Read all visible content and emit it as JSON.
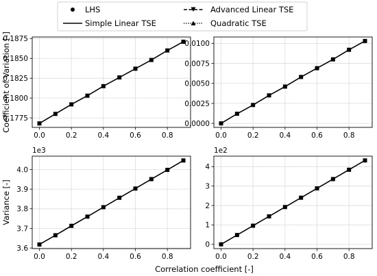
{
  "legend": {
    "entries": [
      {
        "label": "LHS",
        "marker": "circle",
        "line": "none"
      },
      {
        "label": "Advanced Linear TSE",
        "marker": "triangle-down",
        "line": "dashed"
      },
      {
        "label": "Simple Linear TSE",
        "marker": "none",
        "line": "solid"
      },
      {
        "label": "Quadratic TSE",
        "marker": "triangle-up",
        "line": "dotted"
      }
    ]
  },
  "chart_data": [
    {
      "type": "line",
      "panel": "top-left",
      "ylabel": "Coefficient of Variation [-]",
      "x": [
        0.0,
        0.1,
        0.2,
        0.3,
        0.4,
        0.5,
        0.6,
        0.7,
        0.8,
        0.9
      ],
      "values": [
        0.1768,
        0.178,
        0.1792,
        0.1803,
        0.1815,
        0.1826,
        0.1837,
        0.1848,
        0.186,
        0.1871
      ],
      "xlim": [
        -0.045,
        0.945
      ],
      "ylim": [
        0.1763,
        0.1877
      ],
      "xticks": [
        "0.0",
        "0.2",
        "0.4",
        "0.6",
        "0.8"
      ],
      "xtick_values": [
        0,
        0.2,
        0.4,
        0.6,
        0.8
      ],
      "yticks": [
        "0.1775",
        "0.1800",
        "0.1825",
        "0.1850",
        "0.1875"
      ],
      "ytick_values": [
        0.1775,
        0.18,
        0.1825,
        0.185,
        0.1875
      ],
      "offset": "",
      "grid": true
    },
    {
      "type": "line",
      "panel": "top-right",
      "ylabel": "",
      "x": [
        0.0,
        0.1,
        0.2,
        0.3,
        0.4,
        0.5,
        0.6,
        0.7,
        0.8,
        0.9
      ],
      "values": [
        0.0,
        0.0012,
        0.0023,
        0.0035,
        0.0046,
        0.0058,
        0.0069,
        0.008,
        0.0092,
        0.0103
      ],
      "xlim": [
        -0.045,
        0.945
      ],
      "ylim": [
        -0.0005,
        0.0108
      ],
      "xticks": [
        "0.0",
        "0.2",
        "0.4",
        "0.6",
        "0.8"
      ],
      "xtick_values": [
        0,
        0.2,
        0.4,
        0.6,
        0.8
      ],
      "yticks": [
        "0.0000",
        "0.0025",
        "0.0050",
        "0.0075",
        "0.0100"
      ],
      "ytick_values": [
        0,
        0.0025,
        0.005,
        0.0075,
        0.01
      ],
      "offset": "",
      "grid": true
    },
    {
      "type": "line",
      "panel": "bottom-left",
      "ylabel": "Variance [-]",
      "x": [
        0.0,
        0.1,
        0.2,
        0.3,
        0.4,
        0.5,
        0.6,
        0.7,
        0.8,
        0.9
      ],
      "values": [
        3.618,
        3.665,
        3.713,
        3.76,
        3.808,
        3.856,
        3.903,
        3.951,
        3.998,
        4.046
      ],
      "xlim": [
        -0.045,
        0.945
      ],
      "ylim": [
        3.597,
        4.068
      ],
      "xticks": [
        "0.0",
        "0.2",
        "0.4",
        "0.6",
        "0.8"
      ],
      "xtick_values": [
        0,
        0.2,
        0.4,
        0.6,
        0.8
      ],
      "yticks": [
        "3.6",
        "3.7",
        "3.8",
        "3.9",
        "4.0"
      ],
      "ytick_values": [
        3.6,
        3.7,
        3.8,
        3.9,
        4.0
      ],
      "offset": "1e3",
      "grid": true
    },
    {
      "type": "line",
      "panel": "bottom-right",
      "ylabel": "",
      "x": [
        0.0,
        0.1,
        0.2,
        0.3,
        0.4,
        0.5,
        0.6,
        0.7,
        0.8,
        0.9
      ],
      "values": [
        0.0,
        0.48,
        0.96,
        1.44,
        1.92,
        2.4,
        2.88,
        3.36,
        3.84,
        4.32
      ],
      "xlim": [
        -0.045,
        0.945
      ],
      "ylim": [
        -0.22,
        4.54
      ],
      "xticks": [
        "0.0",
        "0.2",
        "0.4",
        "0.6",
        "0.8"
      ],
      "xtick_values": [
        0,
        0.2,
        0.4,
        0.6,
        0.8
      ],
      "yticks": [
        "0",
        "1",
        "2",
        "3",
        "4"
      ],
      "ytick_values": [
        0,
        1,
        2,
        3,
        4
      ],
      "offset": "1e2",
      "grid": true
    }
  ],
  "shared_xlabel": "Correlation coefficient [-]"
}
